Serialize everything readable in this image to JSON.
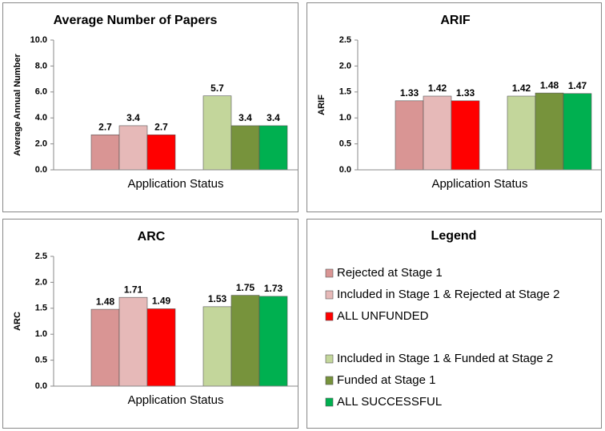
{
  "chart_data": [
    {
      "type": "bar",
      "title": "Average Number of Papers",
      "ylabel": "Average Annual Number",
      "xlabel": "Application Status",
      "values": [
        2.7,
        3.4,
        2.7,
        5.7,
        3.4,
        3.4
      ],
      "ylim": [
        0,
        10
      ],
      "yticks": [
        {
          "value": 0,
          "label": "0.0"
        },
        {
          "value": 2,
          "label": "2.0"
        },
        {
          "value": 4,
          "label": "4.0"
        },
        {
          "value": 6,
          "label": "6.0"
        },
        {
          "value": 8,
          "label": "8.0"
        },
        {
          "value": 10,
          "label": "10.0"
        }
      ]
    },
    {
      "type": "bar",
      "title": "ARIF",
      "ylabel": "ARIF",
      "xlabel": "Application Status",
      "values": [
        1.33,
        1.42,
        1.33,
        1.42,
        1.48,
        1.47
      ],
      "ylim": [
        0,
        2.5
      ],
      "yticks": [
        {
          "value": 0,
          "label": "0.0"
        },
        {
          "value": 0.5,
          "label": "0.5"
        },
        {
          "value": 1,
          "label": "1.0"
        },
        {
          "value": 1.5,
          "label": "1.5"
        },
        {
          "value": 2,
          "label": "2.0"
        },
        {
          "value": 2.5,
          "label": "2.5"
        }
      ]
    },
    {
      "type": "bar",
      "title": "ARC",
      "ylabel": "ARC",
      "xlabel": "Application Status",
      "values": [
        1.48,
        1.71,
        1.49,
        1.53,
        1.75,
        1.73
      ],
      "ylim": [
        0,
        2.5
      ],
      "yticks": [
        {
          "value": 0,
          "label": "0.0"
        },
        {
          "value": 0.5,
          "label": "0.5"
        },
        {
          "value": 1,
          "label": "1.0"
        },
        {
          "value": 1.5,
          "label": "1.5"
        },
        {
          "value": 2,
          "label": "2.0"
        },
        {
          "value": 2.5,
          "label": "2.5"
        }
      ]
    }
  ],
  "legend": {
    "title": "Legend",
    "entries": [
      {
        "name": "Rejected at Stage 1",
        "color": "#d99594"
      },
      {
        "name": "Included in Stage 1 & Rejected at Stage 2",
        "color": "#e6b9b8"
      },
      {
        "name": "ALL UNFUNDED",
        "color": "#ff0000"
      },
      {
        "name": "Included in Stage 1 & Funded at Stage 2",
        "color": "#c3d69b"
      },
      {
        "name": "Funded at Stage 1",
        "color": "#77933c"
      },
      {
        "name": "ALL SUCCESSFUL",
        "color": "#00b050"
      }
    ]
  }
}
